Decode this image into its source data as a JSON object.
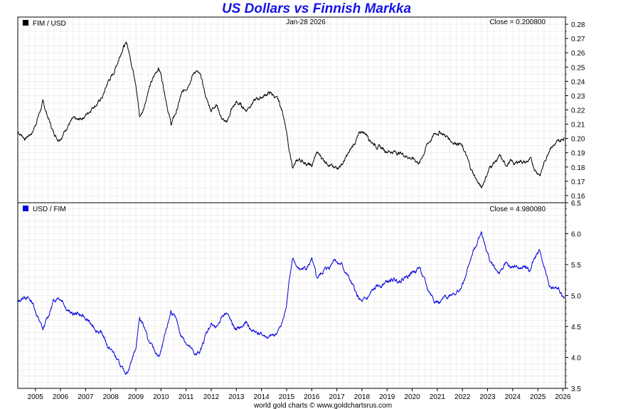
{
  "title": "US Dollars vs Finnish Markka",
  "footer": "world gold charts © www.goldchartsrus.com",
  "date_label": "Jan-28  2026",
  "colors": {
    "title": "#1414e6",
    "upper_series": "#000000",
    "lower_series": "#0000dd",
    "grid": "#e6e6e6"
  },
  "chart_data": [
    {
      "type": "line",
      "panel": "upper",
      "legend": "FIM / USD",
      "close_label": "Close = 0.200800",
      "grid": true,
      "legend_position": "top-left",
      "x_range": [
        2004.3,
        2026.1
      ],
      "ylim": [
        0.155,
        0.285
      ],
      "y_ticks": [
        "0.16",
        "0.17",
        "0.18",
        "0.19",
        "0.20",
        "0.21",
        "0.22",
        "0.23",
        "0.24",
        "0.25",
        "0.26",
        "0.27",
        "0.28"
      ],
      "series": [
        {
          "name": "FIM / USD",
          "points": [
            [
              2004.3,
              0.205
            ],
            [
              2004.6,
              0.2
            ],
            [
              2004.9,
              0.205
            ],
            [
              2005.1,
              0.215
            ],
            [
              2005.3,
              0.225
            ],
            [
              2005.5,
              0.215
            ],
            [
              2005.7,
              0.205
            ],
            [
              2005.9,
              0.2
            ],
            [
              2006.1,
              0.203
            ],
            [
              2006.3,
              0.21
            ],
            [
              2006.5,
              0.213
            ],
            [
              2006.7,
              0.212
            ],
            [
              2006.9,
              0.215
            ],
            [
              2007.1,
              0.218
            ],
            [
              2007.3,
              0.223
            ],
            [
              2007.5,
              0.225
            ],
            [
              2007.7,
              0.23
            ],
            [
              2007.9,
              0.24
            ],
            [
              2008.1,
              0.245
            ],
            [
              2008.3,
              0.255
            ],
            [
              2008.5,
              0.265
            ],
            [
              2008.65,
              0.266
            ],
            [
              2008.8,
              0.255
            ],
            [
              2009.0,
              0.24
            ],
            [
              2009.15,
              0.215
            ],
            [
              2009.3,
              0.22
            ],
            [
              2009.5,
              0.235
            ],
            [
              2009.7,
              0.242
            ],
            [
              2009.9,
              0.25
            ],
            [
              2010.0,
              0.245
            ],
            [
              2010.2,
              0.228
            ],
            [
              2010.4,
              0.21
            ],
            [
              2010.6,
              0.218
            ],
            [
              2010.8,
              0.23
            ],
            [
              2011.0,
              0.235
            ],
            [
              2011.2,
              0.243
            ],
            [
              2011.4,
              0.248
            ],
            [
              2011.6,
              0.242
            ],
            [
              2011.8,
              0.228
            ],
            [
              2012.0,
              0.22
            ],
            [
              2012.2,
              0.225
            ],
            [
              2012.4,
              0.215
            ],
            [
              2012.6,
              0.21
            ],
            [
              2012.8,
              0.22
            ],
            [
              2013.0,
              0.225
            ],
            [
              2013.2,
              0.223
            ],
            [
              2013.4,
              0.22
            ],
            [
              2013.6,
              0.225
            ],
            [
              2013.8,
              0.227
            ],
            [
              2014.0,
              0.229
            ],
            [
              2014.3,
              0.232
            ],
            [
              2014.5,
              0.23
            ],
            [
              2014.7,
              0.225
            ],
            [
              2014.9,
              0.215
            ],
            [
              2015.0,
              0.205
            ],
            [
              2015.1,
              0.19
            ],
            [
              2015.25,
              0.18
            ],
            [
              2015.5,
              0.185
            ],
            [
              2015.8,
              0.183
            ],
            [
              2016.0,
              0.18
            ],
            [
              2016.2,
              0.19
            ],
            [
              2016.5,
              0.185
            ],
            [
              2016.7,
              0.183
            ],
            [
              2016.9,
              0.178
            ],
            [
              2017.0,
              0.18
            ],
            [
              2017.2,
              0.182
            ],
            [
              2017.5,
              0.19
            ],
            [
              2017.8,
              0.2
            ],
            [
              2018.0,
              0.205
            ],
            [
              2018.2,
              0.203
            ],
            [
              2018.4,
              0.198
            ],
            [
              2018.6,
              0.195
            ],
            [
              2018.9,
              0.192
            ],
            [
              2019.2,
              0.191
            ],
            [
              2019.5,
              0.19
            ],
            [
              2019.8,
              0.188
            ],
            [
              2020.1,
              0.185
            ],
            [
              2020.3,
              0.183
            ],
            [
              2020.6,
              0.196
            ],
            [
              2020.9,
              0.203
            ],
            [
              2021.1,
              0.205
            ],
            [
              2021.4,
              0.201
            ],
            [
              2021.6,
              0.198
            ],
            [
              2021.9,
              0.197
            ],
            [
              2022.1,
              0.19
            ],
            [
              2022.3,
              0.18
            ],
            [
              2022.6,
              0.17
            ],
            [
              2022.75,
              0.165
            ],
            [
              2022.9,
              0.172
            ],
            [
              2023.1,
              0.18
            ],
            [
              2023.3,
              0.184
            ],
            [
              2023.5,
              0.187
            ],
            [
              2023.7,
              0.181
            ],
            [
              2023.9,
              0.184
            ],
            [
              2024.1,
              0.182
            ],
            [
              2024.3,
              0.185
            ],
            [
              2024.5,
              0.183
            ],
            [
              2024.7,
              0.185
            ],
            [
              2024.9,
              0.178
            ],
            [
              2025.1,
              0.175
            ],
            [
              2025.3,
              0.185
            ],
            [
              2025.5,
              0.195
            ],
            [
              2025.7,
              0.196
            ],
            [
              2025.9,
              0.198
            ],
            [
              2026.05,
              0.2008
            ]
          ]
        }
      ]
    },
    {
      "type": "line",
      "panel": "lower",
      "legend": "USD / FIM",
      "close_label": "Close = 4.980080",
      "grid": true,
      "legend_position": "top-left",
      "x_range": [
        2004.3,
        2026.1
      ],
      "ylim": [
        3.5,
        6.5
      ],
      "y_ticks": [
        "3.5",
        "4.0",
        "4.5",
        "5.0",
        "5.5",
        "6.0",
        "6.5"
      ],
      "x_ticks": [
        "2005",
        "2006",
        "2007",
        "2008",
        "2009",
        "2010",
        "2011",
        "2012",
        "2013",
        "2014",
        "2015",
        "2016",
        "2017",
        "2018",
        "2019",
        "2020",
        "2021",
        "2022",
        "2023",
        "2024",
        "2025",
        "2026"
      ],
      "series": [
        {
          "name": "USD / FIM",
          "points": [
            [
              2004.3,
              4.88
            ],
            [
              2004.6,
              5.0
            ],
            [
              2004.9,
              4.88
            ],
            [
              2005.1,
              4.65
            ],
            [
              2005.3,
              4.44
            ],
            [
              2005.5,
              4.65
            ],
            [
              2005.7,
              4.88
            ],
            [
              2005.9,
              5.0
            ],
            [
              2006.1,
              4.93
            ],
            [
              2006.3,
              4.76
            ],
            [
              2006.5,
              4.69
            ],
            [
              2006.7,
              4.72
            ],
            [
              2006.9,
              4.65
            ],
            [
              2007.1,
              4.59
            ],
            [
              2007.3,
              4.48
            ],
            [
              2007.5,
              4.44
            ],
            [
              2007.7,
              4.35
            ],
            [
              2007.9,
              4.17
            ],
            [
              2008.1,
              4.08
            ],
            [
              2008.3,
              3.92
            ],
            [
              2008.5,
              3.77
            ],
            [
              2008.65,
              3.76
            ],
            [
              2008.8,
              3.92
            ],
            [
              2009.0,
              4.17
            ],
            [
              2009.15,
              4.65
            ],
            [
              2009.3,
              4.55
            ],
            [
              2009.5,
              4.26
            ],
            [
              2009.7,
              4.13
            ],
            [
              2009.9,
              4.0
            ],
            [
              2010.0,
              4.08
            ],
            [
              2010.2,
              4.39
            ],
            [
              2010.4,
              4.76
            ],
            [
              2010.6,
              4.59
            ],
            [
              2010.8,
              4.35
            ],
            [
              2011.0,
              4.26
            ],
            [
              2011.2,
              4.12
            ],
            [
              2011.4,
              4.03
            ],
            [
              2011.6,
              4.13
            ],
            [
              2011.8,
              4.39
            ],
            [
              2012.0,
              4.55
            ],
            [
              2012.2,
              4.44
            ],
            [
              2012.4,
              4.65
            ],
            [
              2012.6,
              4.76
            ],
            [
              2012.8,
              4.55
            ],
            [
              2013.0,
              4.44
            ],
            [
              2013.2,
              4.48
            ],
            [
              2013.4,
              4.55
            ],
            [
              2013.6,
              4.44
            ],
            [
              2013.8,
              4.41
            ],
            [
              2014.0,
              4.37
            ],
            [
              2014.3,
              4.31
            ],
            [
              2014.5,
              4.35
            ],
            [
              2014.7,
              4.44
            ],
            [
              2014.9,
              4.65
            ],
            [
              2015.0,
              4.88
            ],
            [
              2015.1,
              5.26
            ],
            [
              2015.25,
              5.56
            ],
            [
              2015.5,
              5.41
            ],
            [
              2015.8,
              5.46
            ],
            [
              2016.0,
              5.56
            ],
            [
              2016.2,
              5.26
            ],
            [
              2016.5,
              5.41
            ],
            [
              2016.7,
              5.46
            ],
            [
              2016.9,
              5.62
            ],
            [
              2017.0,
              5.56
            ],
            [
              2017.2,
              5.49
            ],
            [
              2017.5,
              5.26
            ],
            [
              2017.8,
              5.0
            ],
            [
              2018.0,
              4.88
            ],
            [
              2018.2,
              4.93
            ],
            [
              2018.4,
              5.05
            ],
            [
              2018.6,
              5.13
            ],
            [
              2018.9,
              5.21
            ],
            [
              2019.2,
              5.24
            ],
            [
              2019.5,
              5.26
            ],
            [
              2019.8,
              5.32
            ],
            [
              2020.1,
              5.41
            ],
            [
              2020.3,
              5.46
            ],
            [
              2020.6,
              5.1
            ],
            [
              2020.9,
              4.93
            ],
            [
              2021.1,
              4.88
            ],
            [
              2021.4,
              4.98
            ],
            [
              2021.6,
              5.05
            ],
            [
              2021.9,
              5.08
            ],
            [
              2022.1,
              5.26
            ],
            [
              2022.3,
              5.56
            ],
            [
              2022.6,
              5.88
            ],
            [
              2022.75,
              6.06
            ],
            [
              2022.9,
              5.81
            ],
            [
              2023.1,
              5.56
            ],
            [
              2023.3,
              5.43
            ],
            [
              2023.5,
              5.35
            ],
            [
              2023.7,
              5.52
            ],
            [
              2023.9,
              5.43
            ],
            [
              2024.1,
              5.49
            ],
            [
              2024.3,
              5.41
            ],
            [
              2024.5,
              5.46
            ],
            [
              2024.7,
              5.41
            ],
            [
              2024.9,
              5.62
            ],
            [
              2025.1,
              5.71
            ],
            [
              2025.3,
              5.41
            ],
            [
              2025.5,
              5.13
            ],
            [
              2025.7,
              5.1
            ],
            [
              2025.9,
              5.05
            ],
            [
              2026.05,
              4.98
            ]
          ]
        }
      ]
    }
  ]
}
